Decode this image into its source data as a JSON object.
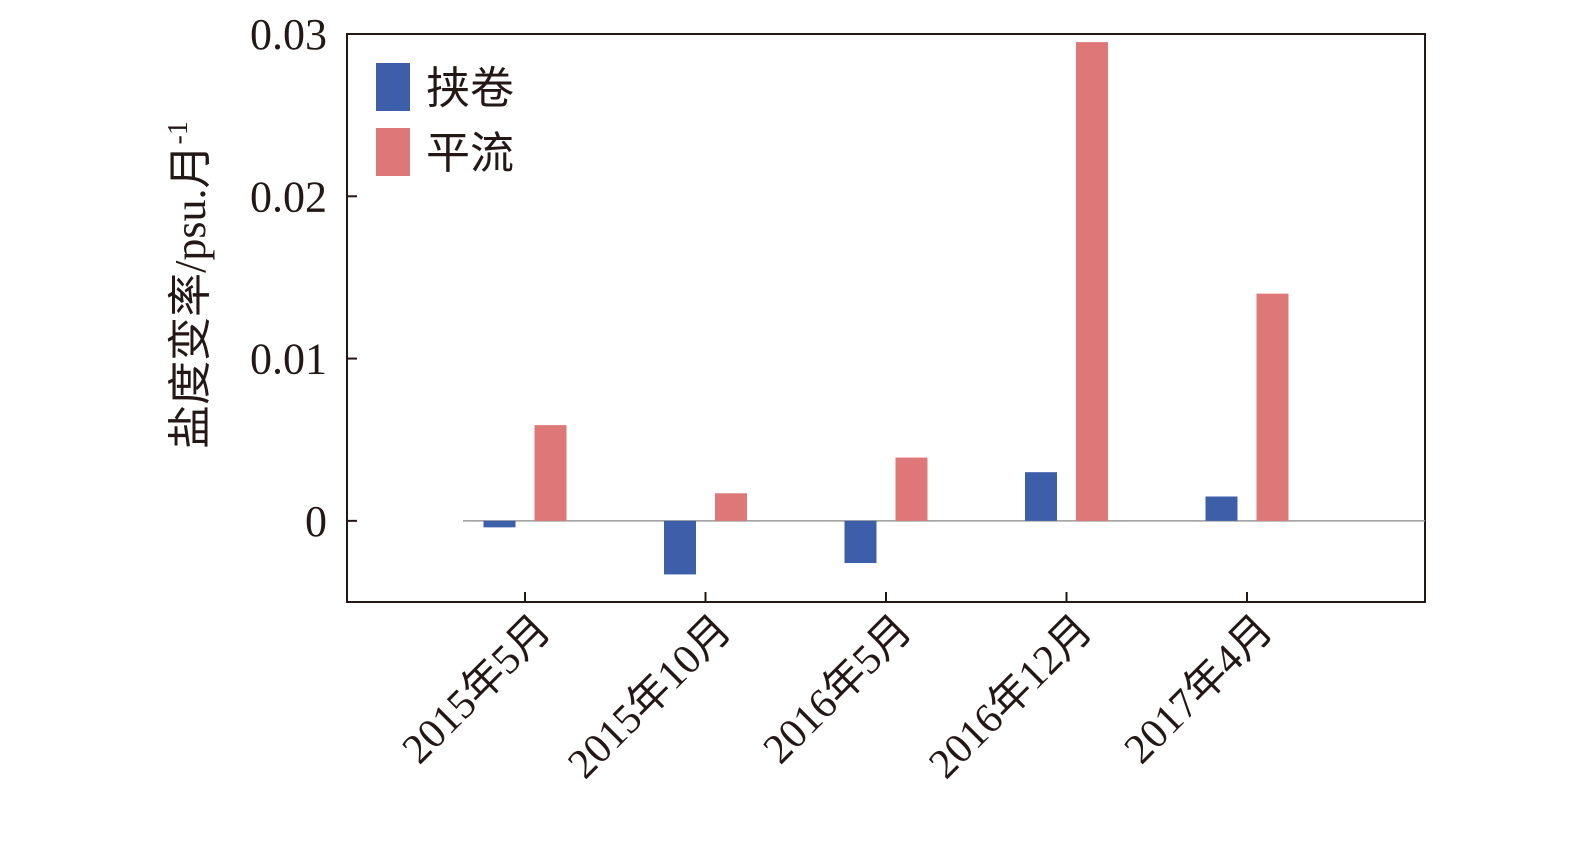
{
  "chart_data": {
    "type": "bar",
    "categories": [
      "2015年5月",
      "2015年10月",
      "2016年5月",
      "2016年12月",
      "2017年4月"
    ],
    "series": [
      {
        "name": "挟卷",
        "values": [
          -0.0004,
          -0.0033,
          -0.0026,
          0.003,
          0.0015
        ],
        "color": "#3d5fa9"
      },
      {
        "name": "平流",
        "values": [
          0.0059,
          0.0017,
          0.0039,
          0.0295,
          0.014
        ],
        "color": "#de7878"
      }
    ],
    "ylabel": "盐度变率/psu.月",
    "ylabel_superscript": "-1",
    "ylim": [
      -0.005,
      0.03
    ],
    "yticks": [
      0,
      0.01,
      0.02,
      0.03
    ],
    "ytick_labels": [
      "0",
      "0.01",
      "0.02",
      "0.03"
    ],
    "legend_position": "top-left",
    "grid": false
  }
}
